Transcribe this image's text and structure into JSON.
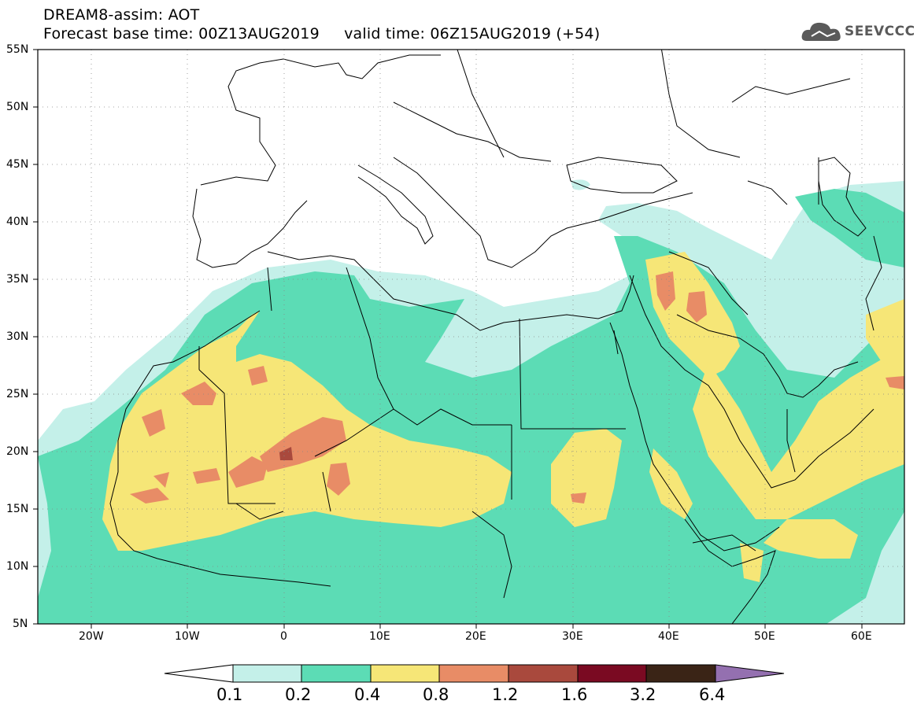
{
  "header": {
    "line1": "DREAM8-assim: AOT",
    "line2": "Forecast base time: 00Z13AUG2019     valid time: 06Z15AUG2019 (+54)"
  },
  "logo": {
    "text": "SEEVCCC",
    "icon": "cloud-icon"
  },
  "axes": {
    "y_labels": [
      "55N",
      "50N",
      "45N",
      "40N",
      "35N",
      "30N",
      "25N",
      "20N",
      "15N",
      "10N",
      "5N"
    ],
    "x_labels": [
      "20W",
      "10W",
      "0",
      "10E",
      "20E",
      "30E",
      "40E",
      "50E",
      "60E"
    ],
    "lon_range": [
      -25,
      65
    ],
    "lat_range": [
      5,
      55
    ]
  },
  "colorbar": {
    "labels": [
      "0.1",
      "0.2",
      "0.4",
      "0.8",
      "1.2",
      "1.6",
      "3.2",
      "6.4"
    ],
    "colors": [
      "#ffffff",
      "#c4f0e9",
      "#5cdcb5",
      "#f6e677",
      "#e88c66",
      "#a9493d",
      "#7a0a22",
      "#3a2416",
      "#9470b0"
    ]
  },
  "layer_colors": {
    "aot_0_1": "#c4f0e9",
    "aot_0_2": "#5cdcb5",
    "aot_0_4": "#f6e677",
    "aot_0_8": "#e88c66",
    "aot_1_2": "#a9493d"
  }
}
